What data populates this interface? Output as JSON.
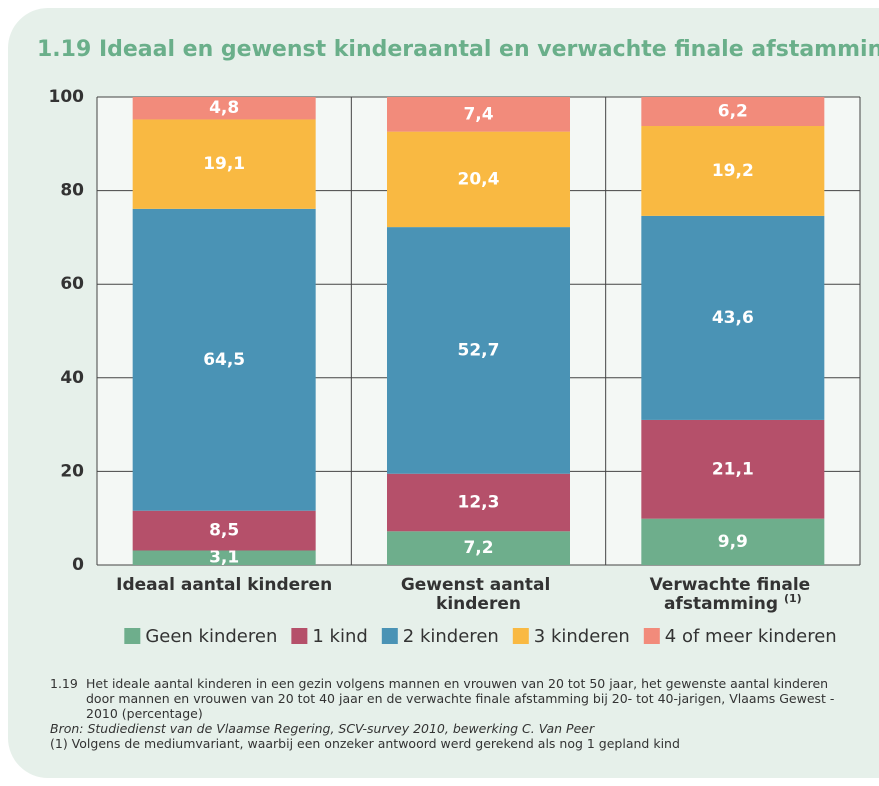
{
  "chart_data": {
    "type": "stacked_bar",
    "title": "1.19 Ideaal en gewenst kinderaantal en verwachte finale afstamming",
    "categories": [
      "Ideaal aantal kinderen",
      "Gewenst aantal kinderen",
      "Verwachte finale afstamming (1)"
    ],
    "series": [
      {
        "name": "Geen kinderen",
        "color": "#6eae8c",
        "values": [
          3.1,
          7.2,
          9.9
        ],
        "value_labels": [
          "3,1",
          "7,2",
          "9,9"
        ]
      },
      {
        "name": "1 kind",
        "color": "#b5506a",
        "values": [
          8.5,
          12.3,
          21.1
        ],
        "value_labels": [
          "8,5",
          "12,3",
          "21,1"
        ]
      },
      {
        "name": "2 kinderen",
        "color": "#4a93b5",
        "values": [
          64.5,
          52.7,
          43.6
        ],
        "value_labels": [
          "64,5",
          "52,7",
          "43,6"
        ]
      },
      {
        "name": "3 kinderen",
        "color": "#f9b942",
        "values": [
          19.1,
          20.4,
          19.2
        ],
        "value_labels": [
          "19,1",
          "20,4",
          "19,2"
        ]
      },
      {
        "name": "4 of meer kinderen",
        "color": "#f28b7b",
        "values": [
          4.8,
          7.4,
          6.2
        ],
        "value_labels": [
          "4,8",
          "7,4",
          "6,2"
        ]
      }
    ],
    "ylim": [
      0,
      100
    ],
    "yticks": [
      0,
      20,
      40,
      60,
      80,
      100
    ],
    "grid": true,
    "legend": "bottom",
    "caption_number": "1.19",
    "caption": "Het ideale aantal kinderen in een gezin volgens mannen en vrouwen van 20 tot 50 jaar, het gewenste aantal kinderen door mannen en vrouwen van 20 tot 40 jaar en de verwachte finale afstamming bij 20- tot 40-jarigen, Vlaams Gewest - 2010 (percentage)",
    "source": "Bron: Studiedienst van de Vlaamse Regering, SCV-survey 2010, bewerking C. Van Peer",
    "note": "(1) Volgens de mediumvariant, waarbij een onzeker antwoord werd gerekend als nog 1 gepland kind"
  }
}
